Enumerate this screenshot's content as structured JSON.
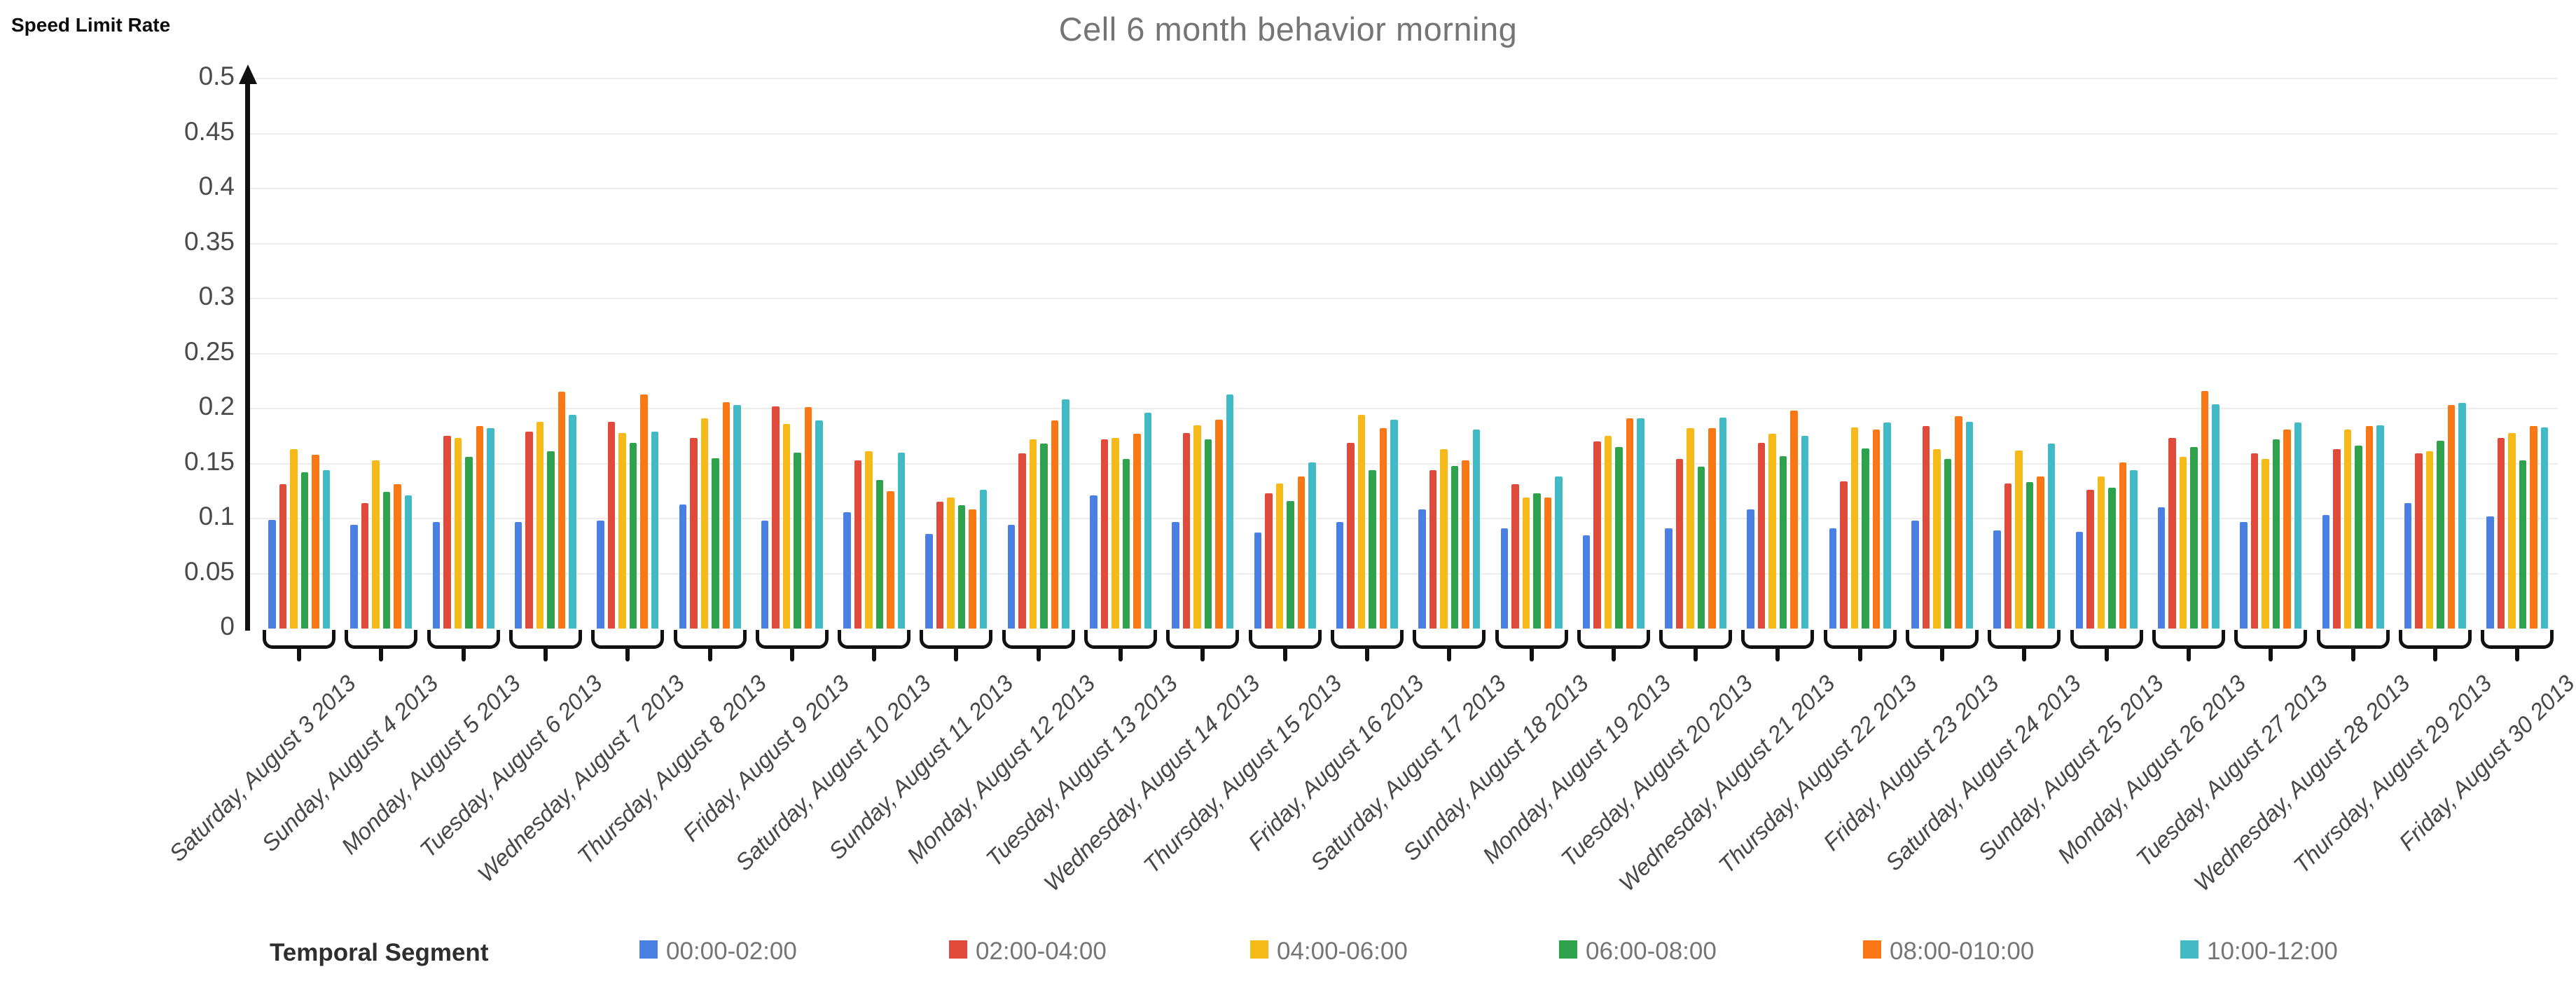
{
  "title": "Cell 6 month behavior morning",
  "y_axis": {
    "label": "Speed Limit Rate",
    "ticks": [
      "0",
      "0.05",
      "0.1",
      "0.15",
      "0.2",
      "0.25",
      "0.3",
      "0.35",
      "0.4",
      "0.45",
      "0.5"
    ]
  },
  "x_axis": {
    "label": "Temporal Segment"
  },
  "legend": [
    {
      "label": "00:00-02:00",
      "color": "#4a80e4"
    },
    {
      "label": "02:00-04:00",
      "color": "#e04a3a"
    },
    {
      "label": "04:00-06:00",
      "color": "#f7b918"
    },
    {
      "label": "06:00-08:00",
      "color": "#2fa24c"
    },
    {
      "label": "08:00-010:00",
      "color": "#f97714"
    },
    {
      "label": "10:00-12:00",
      "color": "#42bac5"
    }
  ],
  "chart_data": {
    "type": "bar",
    "title": "Cell 6 month behavior morning",
    "xlabel": "Temporal Segment",
    "ylabel": "Speed Limit Rate",
    "ylim": [
      0,
      0.5
    ],
    "ytick_step": 0.05,
    "grid": true,
    "legend_position": "bottom",
    "categories": [
      "Saturday, August 3 2013",
      "Sunday, August 4 2013",
      "Monday, August 5 2013",
      "Tuesday, August 6 2013",
      "Wednesday, August 7 2013",
      "Thursday, August 8 2013",
      "Friday, August 9 2013",
      "Saturday, August 10 2013",
      "Sunday, August 11 2013",
      "Monday, August 12 2013",
      "Tuesday, August 13 2013",
      "Wednesday, August 14 2013",
      "Thursday, August 15 2013",
      "Friday, August 16 2013",
      "Saturday, August 17 2013",
      "Sunday, August 18 2013",
      "Monday, August 19 2013",
      "Tuesday, August 20 2013",
      "Wednesday, August 21 2013",
      "Thursday, August 22 2013",
      "Friday, August 23 2013",
      "Saturday, August 24 2013",
      "Sunday, August 25 2013",
      "Monday, August 26 2013",
      "Tuesday, August 27 2013",
      "Wednesday, August 28 2013",
      "Thursday, August 29 2013",
      "Friday, August 30 2013"
    ],
    "series": [
      {
        "name": "00:00-02:00",
        "color": "#4a80e4",
        "values": [
          0.099,
          0.094,
          0.097,
          0.097,
          0.098,
          0.113,
          0.098,
          0.106,
          0.086,
          0.094,
          0.121,
          0.097,
          0.087,
          0.097,
          0.108,
          0.091,
          0.085,
          0.091,
          0.108,
          0.091,
          0.098,
          0.089,
          0.088,
          0.11,
          0.097,
          0.103,
          0.114,
          0.102
        ]
      },
      {
        "name": "02:00-04:00",
        "color": "#e04a3a",
        "values": [
          0.131,
          0.114,
          0.175,
          0.179,
          0.188,
          0.173,
          0.202,
          0.153,
          0.115,
          0.159,
          0.172,
          0.178,
          0.123,
          0.169,
          0.144,
          0.131,
          0.17,
          0.154,
          0.169,
          0.134,
          0.184,
          0.132,
          0.126,
          0.173,
          0.159,
          0.163,
          0.159,
          0.173
        ]
      },
      {
        "name": "04:00-06:00",
        "color": "#f7b918",
        "values": [
          0.163,
          0.153,
          0.173,
          0.188,
          0.178,
          0.191,
          0.186,
          0.161,
          0.119,
          0.172,
          0.173,
          0.185,
          0.132,
          0.194,
          0.163,
          0.119,
          0.175,
          0.182,
          0.177,
          0.183,
          0.163,
          0.162,
          0.138,
          0.156,
          0.154,
          0.181,
          0.161,
          0.178
        ]
      },
      {
        "name": "06:00-08:00",
        "color": "#2fa24c",
        "values": [
          0.142,
          0.124,
          0.156,
          0.161,
          0.169,
          0.155,
          0.16,
          0.135,
          0.112,
          0.168,
          0.154,
          0.172,
          0.116,
          0.144,
          0.148,
          0.123,
          0.165,
          0.147,
          0.157,
          0.164,
          0.154,
          0.133,
          0.128,
          0.165,
          0.172,
          0.166,
          0.171,
          0.153
        ]
      },
      {
        "name": "08:00-010:00",
        "color": "#f97714",
        "values": [
          0.158,
          0.131,
          0.184,
          0.215,
          0.213,
          0.206,
          0.201,
          0.125,
          0.108,
          0.189,
          0.177,
          0.19,
          0.138,
          0.182,
          0.153,
          0.119,
          0.191,
          0.182,
          0.198,
          0.181,
          0.193,
          0.138,
          0.151,
          0.216,
          0.181,
          0.184,
          0.203,
          0.184
        ]
      },
      {
        "name": "10:00-12:00",
        "color": "#42bac5",
        "values": [
          0.144,
          0.121,
          0.182,
          0.194,
          0.179,
          0.203,
          0.189,
          0.16,
          0.126,
          0.208,
          0.196,
          0.213,
          0.151,
          0.19,
          0.181,
          0.138,
          0.191,
          0.192,
          0.175,
          0.187,
          0.188,
          0.168,
          0.144,
          0.204,
          0.187,
          0.185,
          0.205,
          0.183
        ]
      }
    ]
  }
}
